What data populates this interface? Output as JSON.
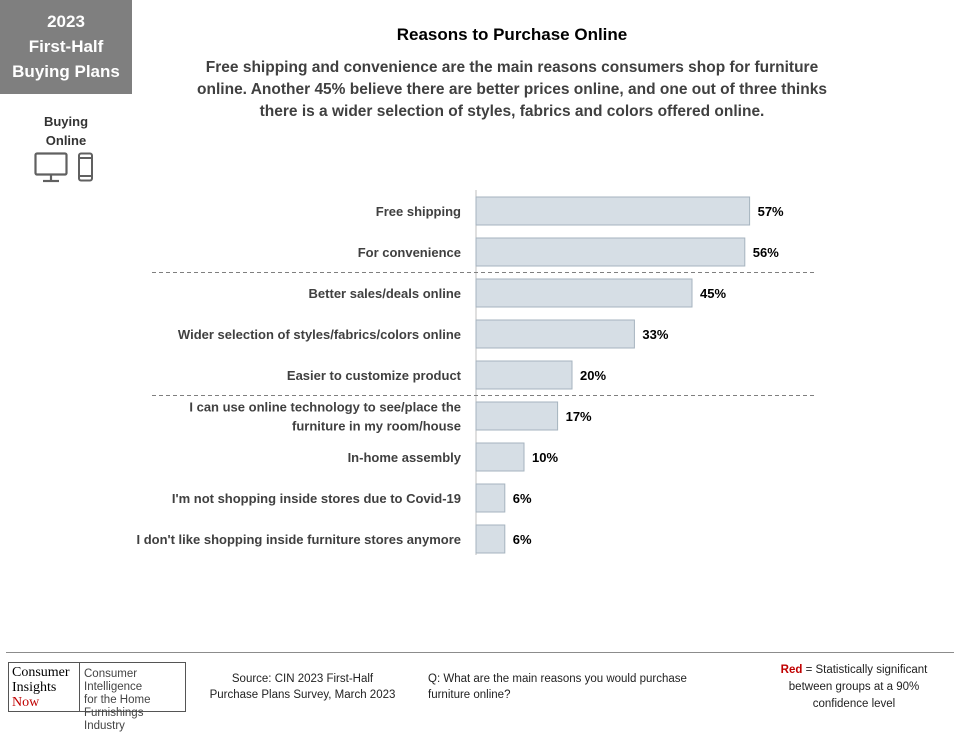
{
  "corner": {
    "year": "2023",
    "line2": "First-Half",
    "line3": "Buying Plans"
  },
  "section": {
    "line1": "Buying",
    "line2": "Online",
    "icons": [
      "desktop-monitor-icon",
      "mobile-phone-icon"
    ]
  },
  "colors": {
    "bar_fill": "#d6dee5",
    "bar_stroke": "#a6b3bf",
    "corner_bg": "#7f7f7f",
    "significance_red": "#c00000"
  },
  "chart_data": {
    "type": "bar",
    "orientation": "horizontal",
    "title": "Reasons to Purchase Online",
    "subtitle": "Free shipping and convenience are the main reasons consumers shop for furniture online. Another 45% believe there are better prices online, and one out of three thinks there is a wider selection of styles, fabrics and colors offered online.",
    "categories": [
      "Free shipping",
      "For convenience",
      "Better sales/deals online",
      "Wider selection of styles/fabrics/colors online",
      "Easier to customize product",
      [
        "I can use online technology to see/place the",
        "furniture in my room/house"
      ],
      "In-home assembly",
      "I'm not shopping inside stores due to Covid-19",
      "I don't like shopping inside furniture stores anymore"
    ],
    "values": [
      57,
      56,
      45,
      33,
      20,
      17,
      10,
      6,
      6
    ],
    "data_labels": [
      "57%",
      "56%",
      "45%",
      "33%",
      "20%",
      "17%",
      "10%",
      "6%",
      "6%"
    ],
    "xlim": [
      0,
      100
    ],
    "xlabel": "",
    "ylabel": "",
    "grid": false,
    "group_separators_after_index": [
      1,
      4
    ]
  },
  "footer": {
    "logo_left": [
      "Consumer",
      "Insights",
      "Now"
    ],
    "logo_right": [
      "Consumer Intelligence",
      "for the Home",
      "Furnishings Industry"
    ],
    "source_line1": "Source:  CIN 2023 First-Half",
    "source_line2": "Purchase Plans Survey, March 2023",
    "question_line1": "Q: What are the main reasons you would purchase",
    "question_line2": "furniture online?",
    "legend_red": "Red",
    "legend_text1": " = Statistically significant",
    "legend_text2": "between  groups at a 90%",
    "legend_text3": "confidence level"
  }
}
